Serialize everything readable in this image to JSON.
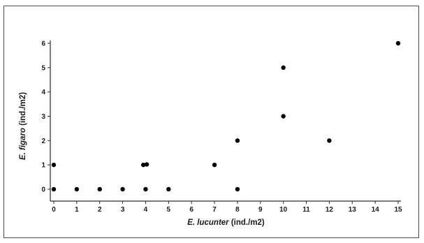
{
  "chart_data": {
    "type": "scatter",
    "title": "",
    "xlabel": {
      "species": "E. lucunter",
      "unit": " (ind./m2)"
    },
    "ylabel": {
      "species": "E. figaro",
      "unit": " (ind./m2)"
    },
    "xlim": [
      0,
      15
    ],
    "ylim": [
      0,
      6
    ],
    "x_ticks": [
      0,
      1,
      2,
      3,
      4,
      5,
      6,
      7,
      8,
      9,
      10,
      11,
      12,
      13,
      14,
      15
    ],
    "y_ticks": [
      0,
      1,
      2,
      3,
      4,
      5,
      6
    ],
    "grid": false,
    "marker_color": "#000000",
    "points": [
      {
        "x": 0,
        "y": 0
      },
      {
        "x": 0,
        "y": 1
      },
      {
        "x": 1,
        "y": 0
      },
      {
        "x": 2,
        "y": 0
      },
      {
        "x": 3,
        "y": 0
      },
      {
        "x": 4,
        "y": 0
      },
      {
        "x": 3.9,
        "y": 1
      },
      {
        "x": 4.05,
        "y": 1.02
      },
      {
        "x": 5,
        "y": 0
      },
      {
        "x": 7,
        "y": 1
      },
      {
        "x": 8,
        "y": 0
      },
      {
        "x": 8,
        "y": 2
      },
      {
        "x": 10,
        "y": 3
      },
      {
        "x": 10,
        "y": 5
      },
      {
        "x": 12,
        "y": 2
      },
      {
        "x": 15,
        "y": 6
      }
    ]
  }
}
